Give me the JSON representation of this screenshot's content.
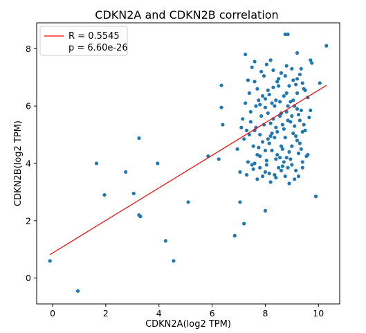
{
  "chart_data": {
    "type": "scatter",
    "title": "CDKN2A and CDKN2B correlation",
    "xlabel": "CDKN2A(log2 TPM)",
    "ylabel": "CDKN2B(log2 TPM)",
    "xlim": [
      -0.6,
      10.8
    ],
    "ylim": [
      -0.9,
      8.9
    ],
    "xticks": [
      0,
      2,
      4,
      6,
      8,
      10
    ],
    "yticks": [
      0,
      2,
      4,
      6,
      8
    ],
    "grid": false,
    "legend_position": "top-left",
    "legend": [
      {
        "label": "R = 0.5545",
        "type": "line",
        "color": "#ff0000"
      },
      {
        "label": "p = 6.60e-26",
        "type": "none"
      }
    ],
    "point_color": "#1f77b4",
    "fit_line": {
      "x": [
        -0.1,
        10.3
      ],
      "y": [
        0.82,
        6.72
      ],
      "color": "#ff0000"
    },
    "points": [
      [
        -0.1,
        0.6
      ],
      [
        0.95,
        -0.45
      ],
      [
        1.65,
        4.0
      ],
      [
        1.95,
        2.9
      ],
      [
        2.75,
        3.7
      ],
      [
        3.05,
        2.95
      ],
      [
        3.25,
        4.88
      ],
      [
        3.25,
        2.2
      ],
      [
        3.3,
        2.15
      ],
      [
        3.95,
        4.0
      ],
      [
        4.25,
        1.3
      ],
      [
        4.55,
        0.6
      ],
      [
        5.1,
        2.65
      ],
      [
        5.85,
        4.25
      ],
      [
        6.25,
        4.15
      ],
      [
        6.35,
        6.72
      ],
      [
        6.35,
        5.95
      ],
      [
        6.4,
        5.35
      ],
      [
        6.85,
        1.48
      ],
      [
        7.05,
        2.65
      ],
      [
        7.2,
        1.9
      ],
      [
        7.25,
        7.8
      ],
      [
        8.0,
        2.35
      ],
      [
        8.75,
        8.5
      ],
      [
        8.85,
        8.5
      ],
      [
        9.2,
        7.85
      ],
      [
        9.35,
        7.3
      ],
      [
        9.7,
        7.6
      ],
      [
        9.75,
        7.5
      ],
      [
        9.9,
        2.85
      ],
      [
        10.3,
        8.1
      ],
      [
        10.05,
        6.8
      ],
      [
        6.95,
        4.5
      ],
      [
        7.05,
        3.7
      ],
      [
        7.15,
        5.55
      ],
      [
        7.2,
        4.85
      ],
      [
        7.25,
        6.1
      ],
      [
        7.3,
        5.15
      ],
      [
        7.35,
        4.05
      ],
      [
        7.4,
        6.45
      ],
      [
        7.45,
        5.8
      ],
      [
        7.5,
        3.95
      ],
      [
        7.55,
        4.6
      ],
      [
        7.6,
        6.85
      ],
      [
        7.65,
        5.25
      ],
      [
        7.7,
        4.3
      ],
      [
        7.75,
        6.2
      ],
      [
        7.8,
        3.85
      ],
      [
        7.85,
        5.65
      ],
      [
        7.9,
        4.75
      ],
      [
        7.95,
        7.05
      ],
      [
        8.0,
        5.95
      ],
      [
        8.05,
        4.1
      ],
      [
        8.1,
        6.55
      ],
      [
        8.15,
        3.65
      ],
      [
        8.2,
        5.4
      ],
      [
        8.25,
        4.45
      ],
      [
        8.3,
        7.25
      ],
      [
        8.35,
        6.0
      ],
      [
        8.4,
        3.5
      ],
      [
        8.45,
        5.1
      ],
      [
        8.5,
        6.7
      ],
      [
        8.55,
        4.2
      ],
      [
        8.6,
        5.75
      ],
      [
        8.65,
        3.9
      ],
      [
        8.7,
        6.35
      ],
      [
        8.75,
        4.9
      ],
      [
        8.8,
        7.4
      ],
      [
        8.85,
        5.5
      ],
      [
        8.9,
        3.3
      ],
      [
        8.95,
        6.15
      ],
      [
        9.0,
        4.6
      ],
      [
        9.05,
        6.9
      ],
      [
        9.1,
        5.3
      ],
      [
        9.15,
        3.75
      ],
      [
        9.2,
        6.45
      ],
      [
        9.25,
        4.35
      ],
      [
        9.3,
        7.1
      ],
      [
        9.35,
        5.85
      ],
      [
        9.4,
        4.05
      ],
      [
        9.45,
        6.6
      ],
      [
        9.5,
        5.15
      ],
      [
        9.55,
        4.25
      ],
      [
        9.6,
        6.3
      ],
      [
        9.65,
        5.6
      ],
      [
        7.5,
        7.35
      ],
      [
        7.6,
        4.0
      ],
      [
        7.7,
        6.6
      ],
      [
        7.8,
        5.0
      ],
      [
        7.9,
        3.55
      ],
      [
        8.0,
        6.25
      ],
      [
        8.1,
        4.85
      ],
      [
        8.2,
        7.6
      ],
      [
        8.3,
        5.55
      ],
      [
        8.4,
        4.15
      ],
      [
        8.5,
        6.95
      ],
      [
        8.6,
        3.75
      ],
      [
        8.7,
        5.2
      ],
      [
        8.8,
        6.45
      ],
      [
        8.9,
        4.4
      ],
      [
        9.0,
        7.3
      ],
      [
        9.1,
        3.45
      ],
      [
        9.2,
        5.9
      ],
      [
        9.3,
        4.7
      ],
      [
        9.4,
        6.8
      ],
      [
        7.35,
        6.9
      ],
      [
        7.45,
        5.45
      ],
      [
        7.55,
        3.8
      ],
      [
        7.65,
        6.0
      ],
      [
        7.75,
        4.55
      ],
      [
        7.85,
        7.2
      ],
      [
        7.95,
        5.35
      ],
      [
        8.05,
        3.95
      ],
      [
        8.15,
        6.4
      ],
      [
        8.25,
        5.05
      ],
      [
        8.35,
        3.6
      ],
      [
        8.45,
        6.85
      ],
      [
        8.55,
        5.65
      ],
      [
        8.65,
        4.5
      ],
      [
        8.75,
        7.05
      ],
      [
        8.85,
        3.85
      ],
      [
        8.95,
        5.45
      ],
      [
        9.05,
        6.2
      ],
      [
        9.15,
        4.95
      ],
      [
        9.25,
        3.55
      ],
      [
        7.1,
        5.25
      ],
      [
        7.3,
        3.6
      ],
      [
        7.4,
        5.0
      ],
      [
        7.6,
        7.55
      ],
      [
        7.7,
        3.45
      ],
      [
        7.8,
        6.05
      ],
      [
        7.9,
        6.35
      ],
      [
        8.0,
        4.45
      ],
      [
        8.1,
        5.75
      ],
      [
        8.2,
        3.35
      ],
      [
        8.3,
        6.65
      ],
      [
        8.4,
        5.25
      ],
      [
        8.5,
        3.85
      ],
      [
        8.6,
        7.15
      ],
      [
        8.7,
        4.05
      ],
      [
        8.8,
        5.8
      ],
      [
        8.9,
        6.7
      ],
      [
        9.0,
        3.95
      ],
      [
        9.1,
        6.0
      ],
      [
        9.2,
        4.8
      ],
      [
        9.3,
        5.5
      ],
      [
        9.4,
        3.85
      ],
      [
        9.5,
        6.55
      ],
      [
        9.6,
        4.3
      ],
      [
        9.7,
        5.85
      ],
      [
        8.05,
        7.45
      ],
      [
        8.15,
        4.7
      ],
      [
        8.25,
        6.1
      ],
      [
        8.35,
        4.9
      ],
      [
        8.45,
        4.3
      ],
      [
        8.55,
        6.15
      ],
      [
        8.65,
        5.35
      ],
      [
        8.75,
        3.55
      ],
      [
        8.85,
        6.0
      ],
      [
        8.95,
        4.15
      ],
      [
        9.05,
        5.05
      ],
      [
        9.15,
        6.75
      ],
      [
        9.25,
        5.7
      ],
      [
        9.35,
        4.5
      ],
      [
        9.45,
        5.35
      ],
      [
        7.6,
        5.15
      ],
      [
        7.8,
        4.25
      ],
      [
        8.0,
        3.7
      ],
      [
        8.2,
        4.95
      ],
      [
        8.4,
        6.2
      ],
      [
        8.6,
        4.6
      ],
      [
        8.8,
        4.2
      ],
      [
        9.0,
        5.65
      ],
      [
        9.2,
        6.95
      ],
      [
        9.4,
        5.1
      ]
    ]
  }
}
